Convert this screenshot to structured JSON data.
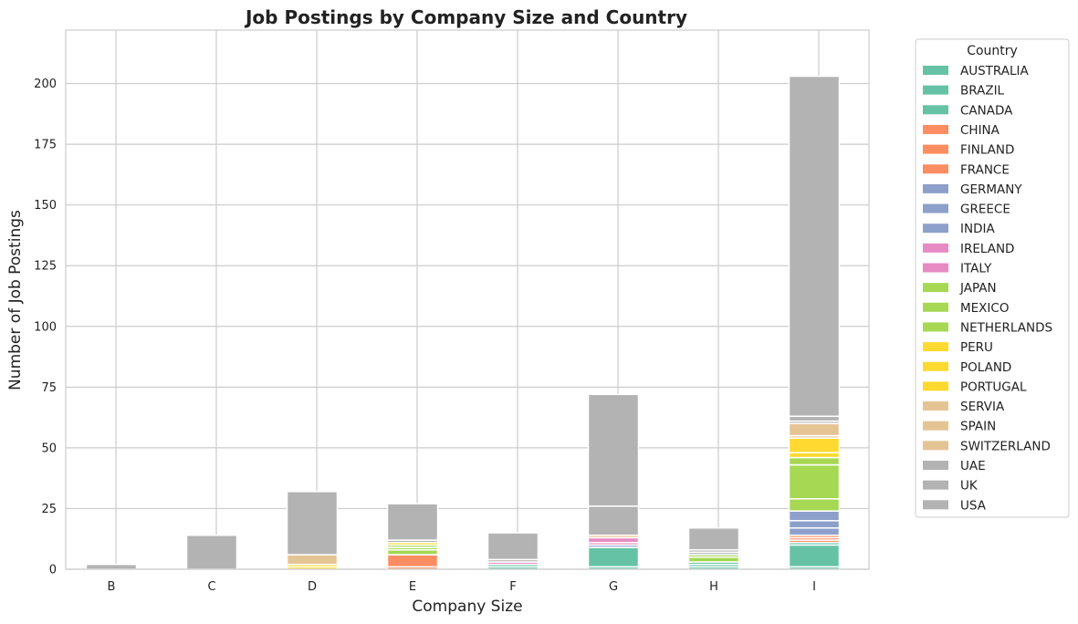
{
  "chart_data": {
    "type": "bar",
    "stacked": true,
    "title": "Job Postings by Company Size and Country",
    "xlabel": "Company Size",
    "ylabel": "Number of Job Postings",
    "ylim": [
      0,
      222
    ],
    "yticks": [
      0,
      25,
      50,
      75,
      100,
      125,
      150,
      175,
      200
    ],
    "grid": true,
    "categories": [
      "B",
      "C",
      "D",
      "E",
      "F",
      "G",
      "H",
      "I"
    ],
    "legend": {
      "title": "Country",
      "placement": "outside right"
    },
    "series": [
      {
        "name": "AUSTRALIA",
        "color": "#66c2a5",
        "values": [
          0,
          0,
          0,
          0,
          1,
          1,
          1,
          1
        ]
      },
      {
        "name": "BRAZIL",
        "color": "#66c2a5",
        "values": [
          0,
          0,
          0,
          0,
          1,
          8,
          1,
          9
        ]
      },
      {
        "name": "CANADA",
        "color": "#66c2a5",
        "values": [
          0,
          0,
          0,
          0,
          0,
          0,
          1,
          1
        ]
      },
      {
        "name": "CHINA",
        "color": "#fc8d62",
        "values": [
          0,
          0,
          0,
          1,
          0,
          0,
          0,
          1
        ]
      },
      {
        "name": "FINLAND",
        "color": "#fc8d62",
        "values": [
          0,
          0,
          0,
          5,
          0,
          0,
          0,
          1
        ]
      },
      {
        "name": "FRANCE",
        "color": "#fc8d62",
        "values": [
          0,
          0,
          0,
          0,
          0,
          0,
          0,
          1
        ]
      },
      {
        "name": "GERMANY",
        "color": "#8da0cb",
        "values": [
          0,
          0,
          0,
          0,
          0,
          0,
          0,
          3
        ]
      },
      {
        "name": "GREECE",
        "color": "#8da0cb",
        "values": [
          0,
          0,
          0,
          0,
          0,
          1,
          0,
          3
        ]
      },
      {
        "name": "INDIA",
        "color": "#8da0cb",
        "values": [
          0,
          0,
          0,
          0,
          0,
          0,
          0,
          4
        ]
      },
      {
        "name": "IRELAND",
        "color": "#e78ac3",
        "values": [
          0,
          0,
          0,
          0,
          1,
          1,
          0,
          0
        ]
      },
      {
        "name": "ITALY",
        "color": "#e78ac3",
        "values": [
          0,
          0,
          0,
          0,
          0,
          2,
          0,
          0
        ]
      },
      {
        "name": "JAPAN",
        "color": "#a6d854",
        "values": [
          0,
          0,
          0,
          2,
          0,
          0,
          2,
          5
        ]
      },
      {
        "name": "MEXICO",
        "color": "#a6d854",
        "values": [
          0,
          0,
          0,
          1,
          0,
          0,
          0,
          14
        ]
      },
      {
        "name": "NETHERLANDS",
        "color": "#a6d854",
        "values": [
          0,
          0,
          0,
          1,
          0,
          0,
          1,
          3
        ]
      },
      {
        "name": "PERU",
        "color": "#ffd92f",
        "values": [
          0,
          0,
          1,
          0,
          0,
          0,
          0,
          2
        ]
      },
      {
        "name": "POLAND",
        "color": "#ffd92f",
        "values": [
          0,
          0,
          0,
          1,
          0,
          0,
          0,
          0
        ]
      },
      {
        "name": "PORTUGAL",
        "color": "#ffd92f",
        "values": [
          0,
          0,
          1,
          0,
          0,
          0,
          0,
          6
        ]
      },
      {
        "name": "SERVIA",
        "color": "#e5c494",
        "values": [
          0,
          0,
          0,
          0,
          0,
          0,
          0,
          1
        ]
      },
      {
        "name": "SPAIN",
        "color": "#e5c494",
        "values": [
          0,
          0,
          4,
          0,
          0,
          1,
          0,
          5
        ]
      },
      {
        "name": "SWITZERLAND",
        "color": "#e5c494",
        "values": [
          0,
          0,
          0,
          0,
          0,
          0,
          0,
          0
        ]
      },
      {
        "name": "UAE",
        "color": "#b3b3b3",
        "values": [
          0,
          0,
          0,
          1,
          0,
          0,
          1,
          1
        ]
      },
      {
        "name": "UK",
        "color": "#b3b3b3",
        "values": [
          0,
          0,
          0,
          0,
          1,
          12,
          1,
          2
        ]
      },
      {
        "name": "USA",
        "color": "#b3b3b3",
        "values": [
          2,
          14,
          26,
          15,
          11,
          46,
          9,
          140
        ]
      }
    ]
  }
}
